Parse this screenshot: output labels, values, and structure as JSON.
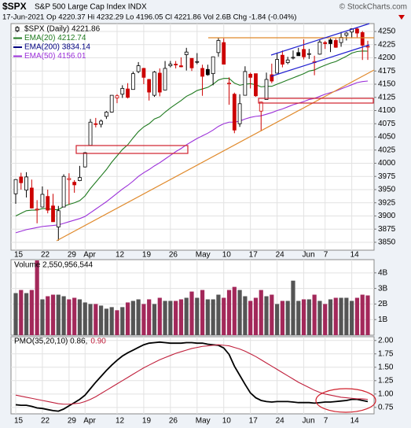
{
  "chart_data": [
    {
      "type": "candlestick",
      "symbol": "$SPX",
      "title": "S&P 500 Large Cap Index INDX",
      "source": "© StockCharts.com",
      "subtitle": "17-Jun-2021  Op 4220.37  Hi 4232.29  Lo 4196.05  Cl 4221.86  Vol 2.6B  Chg -1.84 (-0.04%)",
      "categories": [
        "15",
        null,
        null,
        null,
        null,
        "22",
        null,
        null,
        null,
        null,
        "29",
        null,
        null,
        "Apr",
        null,
        null,
        null,
        null,
        null,
        "12",
        null,
        null,
        null,
        null,
        "19",
        null,
        null,
        null,
        null,
        "26",
        null,
        null,
        null,
        null,
        "May",
        null,
        null,
        null,
        null,
        "10",
        null,
        null,
        null,
        null,
        "17",
        null,
        null,
        null,
        null,
        "24",
        null,
        null,
        null,
        null,
        "Jun",
        null,
        null,
        null,
        "7",
        null,
        null,
        null,
        null,
        "14",
        null,
        null,
        null
      ],
      "open": [
        3942,
        3974,
        3949,
        3953,
        3913,
        3917,
        3937,
        3919,
        3879,
        3917,
        3969,
        3964,
        3967,
        3993,
        4034,
        4075,
        4074,
        4089,
        4097,
        4124,
        4131,
        4141,
        4140,
        4174,
        4180,
        4159,
        4129,
        4171,
        4139,
        4185,
        4188,
        4185,
        4206,
        4199,
        4192,
        4180,
        4178,
        4170,
        4210,
        4229,
        4151,
        4131,
        4075,
        4129,
        4169,
        4170,
        4099,
        4121,
        4168,
        4171,
        4205,
        4191,
        4201,
        4210,
        4216,
        4207,
        4191,
        4207,
        4229,
        4234,
        4233,
        4229,
        4243,
        4249,
        4255,
        4248,
        4220.37
      ],
      "high": [
        3970,
        3982,
        3983,
        3969,
        3930,
        3956,
        3950,
        3942,
        3919,
        3979,
        3981,
        3968,
        3995,
        4021,
        4084,
        4086,
        4083,
        4099,
        4129,
        4131,
        4148,
        4152,
        4174,
        4192,
        4181,
        4160,
        4175,
        4180,
        4194,
        4194,
        4194,
        4201,
        4219,
        4199,
        4209,
        4187,
        4187,
        4202,
        4238,
        4237,
        4163,
        4134,
        4131,
        4184,
        4172,
        4170,
        4117,
        4172,
        4189,
        4210,
        4214,
        4202,
        4214,
        4219,
        4235,
        4217,
        4204,
        4234,
        4232,
        4237,
        4237,
        4249,
        4249,
        4256,
        4257,
        4251,
        4232.29
      ],
      "low": [
        3923,
        3950,
        3935,
        3914,
        3886,
        3917,
        3905,
        3889,
        3853,
        3917,
        3922,
        3944,
        3966,
        3992,
        4034,
        4068,
        4068,
        4084,
        4096,
        4114,
        4124,
        4123,
        4140,
        4171,
        4150,
        4119,
        4126,
        4127,
        4139,
        4182,
        4180,
        4182,
        4176,
        4175,
        4188,
        4128,
        4166,
        4148,
        4202,
        4188,
        4111,
        4057,
        4069,
        4129,
        4142,
        4126,
        4061,
        4121,
        4152,
        4171,
        4182,
        4188,
        4197,
        4204,
        4197,
        4198,
        4167,
        4206,
        4217,
        4211,
        4219,
        4221,
        4233,
        4238,
        4238,
        4196,
        4196.05
      ],
      "close": [
        3969,
        3963,
        3974,
        3915,
        3913,
        3941,
        3911,
        3889,
        3910,
        3975,
        3971,
        3959,
        3973,
        4020,
        4078,
        4074,
        4080,
        4097,
        4129,
        4128,
        4142,
        4125,
        4170,
        4185,
        4163,
        4135,
        4173,
        4135,
        4180,
        4188,
        4187,
        4183,
        4211,
        4181,
        4193,
        4165,
        4168,
        4202,
        4233,
        4188,
        4152,
        4063,
        4113,
        4174,
        4163,
        4128,
        4116,
        4159,
        4156,
        4197,
        4188,
        4196,
        4201,
        4204,
        4202,
        4208,
        4193,
        4230,
        4227,
        4227,
        4220,
        4239,
        4247,
        4255,
        4247,
        4224,
        4221.86
      ],
      "up_color": "#000000",
      "down_color": "#cc0000",
      "legend": [
        {
          "label": "$SPX (Daily) 4221.86",
          "color": "#000000"
        },
        {
          "label": "EMA(20) 4212.74",
          "color": "#1f7a1f"
        },
        {
          "label": "EMA(200) 3834.14",
          "color": "#000080"
        },
        {
          "label": "EMA(50) 4156.01",
          "color": "#9b30d9"
        }
      ],
      "overlays": [
        {
          "color": "#1f7a1f",
          "values": [
            3900,
            3905,
            3910,
            3911,
            3911,
            3914,
            3914,
            3912,
            3912,
            3918,
            3922,
            3925,
            3929,
            3938,
            3952,
            3964,
            3976,
            3988,
            4002,
            4014,
            4026,
            4035,
            4048,
            4060,
            4069,
            4075,
            4084,
            4088,
            4097,
            4105,
            4112,
            4119,
            4127,
            4132,
            4138,
            4141,
            4144,
            4150,
            4158,
            4161,
            4161,
            4152,
            4148,
            4150,
            4151,
            4149,
            4145,
            4146,
            4146,
            4150,
            4154,
            4158,
            4162,
            4166,
            4170,
            4175,
            4177,
            4182,
            4186,
            4190,
            4193,
            4198,
            4203,
            4209,
            4212,
            4213,
            4212.74
          ]
        },
        {
          "color": "#9b30d9",
          "values": [
            3868,
            3871,
            3874,
            3876,
            3878,
            3880,
            3881,
            3882,
            3883,
            3886,
            3889,
            3892,
            3895,
            3899,
            3906,
            3913,
            3920,
            3927,
            3935,
            3943,
            3951,
            3958,
            3966,
            3975,
            3982,
            3988,
            3995,
            4001,
            4008,
            4015,
            4022,
            4028,
            4035,
            4041,
            4047,
            4052,
            4057,
            4063,
            4070,
            4075,
            4078,
            4078,
            4080,
            4084,
            4087,
            4089,
            4090,
            4093,
            4096,
            4100,
            4103,
            4107,
            4111,
            4114,
            4117,
            4121,
            4123,
            4127,
            4131,
            4134,
            4137,
            4141,
            4145,
            4149,
            4153,
            4155,
            4156.01
          ]
        }
      ],
      "ylim": [
        3835,
        4265
      ],
      "yticks": [
        3850,
        3875,
        3900,
        3925,
        3950,
        3975,
        4000,
        4025,
        4050,
        4075,
        4100,
        4125,
        4150,
        4175,
        4200,
        4225,
        4250
      ],
      "grid": true
    },
    {
      "type": "bar",
      "label": "Volume 2,550,956,544",
      "up_color": "#555555",
      "down_color": "#a3285a",
      "values": [
        2700000000,
        2900000000,
        2700000000,
        2900000000,
        4800000000,
        2300000000,
        2500000000,
        2600000000,
        2600000000,
        2500000000,
        2300000000,
        2400000000,
        2300000000,
        2100000000,
        2000000000,
        2000000000,
        1900000000,
        1700000000,
        1800000000,
        1600000000,
        1800000000,
        2100000000,
        2200000000,
        2300000000,
        2000000000,
        2300000000,
        2000000000,
        2400000000,
        2200000000,
        2200000000,
        2200000000,
        2300000000,
        2400000000,
        2800000000,
        2400000000,
        2900000000,
        2300000000,
        2300000000,
        2600000000,
        2400000000,
        2900000000,
        3100000000,
        2900000000,
        2500000000,
        2200000000,
        2400000000,
        2900000000,
        2500000000,
        2600000000,
        2000000000,
        2200000000,
        2200000000,
        3500000000,
        2200000000,
        2300000000,
        2300000000,
        2600000000,
        2200000000,
        2000000000,
        2300000000,
        2400000000,
        2400000000,
        2400000000,
        2200000000,
        2400000000,
        2600000000,
        2550956544
      ],
      "ylim": [
        0,
        4850000000
      ],
      "yticks": [
        {
          "value": 1000000000,
          "label": "1B"
        },
        {
          "value": 2000000000,
          "label": "2B"
        },
        {
          "value": 3000000000,
          "label": "3B"
        },
        {
          "value": 4000000000,
          "label": "4B"
        }
      ],
      "grid": true
    },
    {
      "type": "line",
      "series": [
        {
          "name": "PMO(35,20,10) 0.86,",
          "color": "#000000",
          "values": [
            0.8,
            0.79,
            0.79,
            0.77,
            0.74,
            0.73,
            0.71,
            0.69,
            0.68,
            0.72,
            0.78,
            0.84,
            0.9,
            0.98,
            1.1,
            1.22,
            1.33,
            1.44,
            1.54,
            1.63,
            1.71,
            1.77,
            1.82,
            1.87,
            1.92,
            1.95,
            1.96,
            1.97,
            1.96,
            1.95,
            1.95,
            1.95,
            1.96,
            1.96,
            1.95,
            1.95,
            1.93,
            1.92,
            1.91,
            1.86,
            1.74,
            1.52,
            1.35,
            1.18,
            1.02,
            0.93,
            0.88,
            0.86,
            0.85,
            0.86,
            0.86,
            0.86,
            0.85,
            0.84,
            0.84,
            0.84,
            0.83,
            0.84,
            0.85,
            0.85,
            0.86,
            0.87,
            0.88,
            0.9,
            0.9,
            0.88,
            0.86
          ]
        },
        {
          "name": "0.90",
          "color": "#c0203c",
          "values": [
            0.98,
            0.96,
            0.94,
            0.92,
            0.9,
            0.88,
            0.86,
            0.84,
            0.82,
            0.81,
            0.81,
            0.82,
            0.83,
            0.86,
            0.9,
            0.95,
            1.01,
            1.07,
            1.13,
            1.19,
            1.25,
            1.31,
            1.37,
            1.43,
            1.49,
            1.54,
            1.59,
            1.64,
            1.68,
            1.72,
            1.76,
            1.79,
            1.82,
            1.85,
            1.87,
            1.89,
            1.9,
            1.91,
            1.92,
            1.91,
            1.9,
            1.87,
            1.84,
            1.8,
            1.75,
            1.7,
            1.64,
            1.58,
            1.52,
            1.46,
            1.4,
            1.34,
            1.28,
            1.22,
            1.17,
            1.12,
            1.07,
            1.03,
            1.0,
            0.98,
            0.96,
            0.94,
            0.93,
            0.92,
            0.91,
            0.91,
            0.9
          ]
        }
      ],
      "ylim": [
        0.63,
        2.07
      ],
      "yticks": [
        0.75,
        {
          "value": 1,
          "label": "1.00"
        },
        1.25,
        {
          "value": 1.5,
          "label": "1.50"
        },
        1.75,
        {
          "value": 2,
          "label": "2.00"
        }
      ],
      "grid": true
    }
  ]
}
